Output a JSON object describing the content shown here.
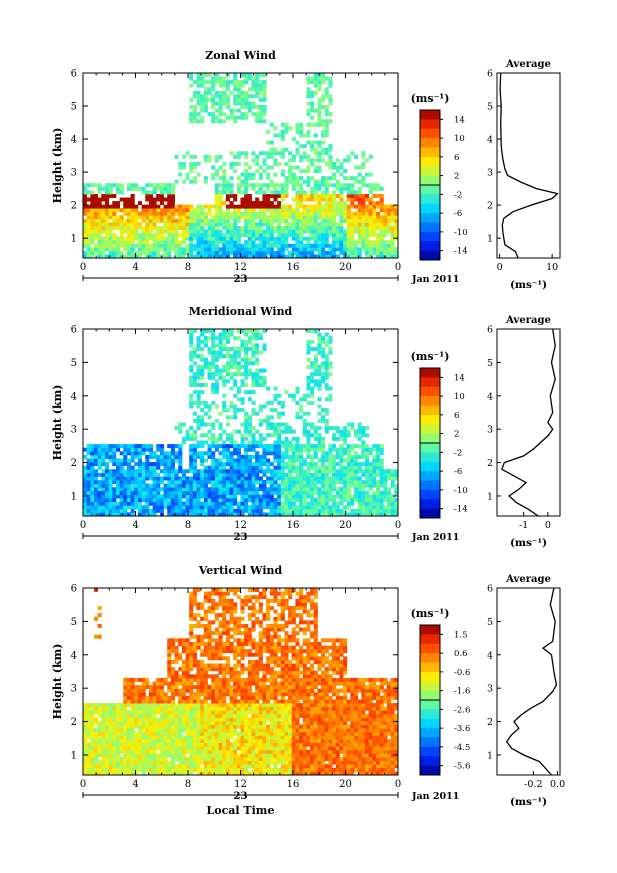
{
  "chart_data": [
    {
      "type": "heatmap",
      "title": "Zonal Wind",
      "ylabel": "Height (km)",
      "xlabel": "",
      "xlim": [
        0,
        24
      ],
      "ylim": [
        0.4,
        6
      ],
      "xticks": [
        "0",
        "4",
        "8",
        "12",
        "16",
        "20",
        "0"
      ],
      "yticks": [
        "1",
        "2",
        "3",
        "4",
        "5",
        "6"
      ],
      "date_label": "23",
      "date_suffix": "Jan 2011",
      "colorbar": {
        "label": "(ms⁻¹)",
        "ticks": [
          "14",
          "10",
          "6",
          "2",
          "-2",
          "-6",
          "-10",
          "-14"
        ],
        "vmin": -16,
        "vmax": 16
      },
      "average": {
        "title": "Average",
        "xlabel": "(ms⁻¹)",
        "xticks": [
          "0",
          "10"
        ],
        "xlim": [
          -0.5,
          11.5
        ],
        "profile": [
          [
            0.4,
            3.5
          ],
          [
            0.6,
            3
          ],
          [
            0.8,
            1
          ],
          [
            1.0,
            0.8
          ],
          [
            1.2,
            0.6
          ],
          [
            1.4,
            0.5
          ],
          [
            1.6,
            0.8
          ],
          [
            1.8,
            2.5
          ],
          [
            2.0,
            6
          ],
          [
            2.2,
            10
          ],
          [
            2.35,
            11
          ],
          [
            2.5,
            7
          ],
          [
            2.7,
            4
          ],
          [
            2.9,
            1.5
          ],
          [
            3.1,
            1
          ],
          [
            3.4,
            0.6
          ],
          [
            3.8,
            0.3
          ],
          [
            4.5,
            0.2
          ],
          [
            5.0,
            0.3
          ],
          [
            5.5,
            0.1
          ],
          [
            6.0,
            0.2
          ]
        ]
      }
    },
    {
      "type": "heatmap",
      "title": "Meridional Wind",
      "ylabel": "Height (km)",
      "xlabel": "",
      "xlim": [
        0,
        24
      ],
      "ylim": [
        0.4,
        6
      ],
      "xticks": [
        "0",
        "4",
        "8",
        "12",
        "16",
        "20",
        "0"
      ],
      "yticks": [
        "1",
        "2",
        "3",
        "4",
        "5",
        "6"
      ],
      "date_label": "23",
      "date_suffix": "Jan 2011",
      "colorbar": {
        "label": "(ms⁻¹)",
        "ticks": [
          "14",
          "10",
          "6",
          "2",
          "-2",
          "-6",
          "-10",
          "-14"
        ],
        "vmin": -16,
        "vmax": 16
      },
      "average": {
        "title": "Average",
        "xlabel": "(ms⁻¹)",
        "xticks": [
          "-1",
          "0"
        ],
        "xlim": [
          -2.1,
          0.5
        ],
        "profile": [
          [
            0.4,
            -0.4
          ],
          [
            0.6,
            -0.8
          ],
          [
            0.8,
            -1.3
          ],
          [
            1.0,
            -1.6
          ],
          [
            1.2,
            -1.2
          ],
          [
            1.4,
            -0.9
          ],
          [
            1.6,
            -1.4
          ],
          [
            1.8,
            -1.9
          ],
          [
            2.0,
            -1.8
          ],
          [
            2.2,
            -1.0
          ],
          [
            2.4,
            -0.6
          ],
          [
            2.6,
            -0.3
          ],
          [
            2.8,
            0.0
          ],
          [
            3.0,
            0.2
          ],
          [
            3.2,
            0.0
          ],
          [
            3.5,
            0.2
          ],
          [
            4.0,
            0.1
          ],
          [
            4.5,
            0.3
          ],
          [
            5.0,
            0.15
          ],
          [
            5.5,
            0.3
          ],
          [
            6.0,
            0.2
          ]
        ]
      }
    },
    {
      "type": "heatmap",
      "title": "Vertical Wind",
      "ylabel": "Height (km)",
      "xlabel": "Local Time",
      "xlim": [
        0,
        24
      ],
      "ylim": [
        0.4,
        6
      ],
      "xticks": [
        "0",
        "4",
        "8",
        "12",
        "16",
        "20",
        "0"
      ],
      "yticks": [
        "1",
        "2",
        "3",
        "4",
        "5",
        "6"
      ],
      "date_label": "23",
      "date_suffix": "Jan 2011",
      "colorbar": {
        "label": "(ms⁻¹)",
        "ticks": [
          "1.5",
          "0.6",
          "-0.6",
          "-1.6",
          "-2.6",
          "-3.6",
          "-4.5",
          "-5.6"
        ],
        "vmin": -6,
        "vmax": 2
      },
      "average": {
        "title": "Average",
        "xlabel": "(ms⁻¹)",
        "xticks": [
          "-0.2",
          "0.0"
        ],
        "xlim": [
          -0.5,
          0.02
        ],
        "profile": [
          [
            0.4,
            -0.05
          ],
          [
            0.6,
            -0.1
          ],
          [
            0.8,
            -0.15
          ],
          [
            1.0,
            -0.28
          ],
          [
            1.2,
            -0.38
          ],
          [
            1.4,
            -0.42
          ],
          [
            1.6,
            -0.38
          ],
          [
            1.8,
            -0.32
          ],
          [
            2.0,
            -0.36
          ],
          [
            2.2,
            -0.3
          ],
          [
            2.4,
            -0.22
          ],
          [
            2.6,
            -0.12
          ],
          [
            2.9,
            -0.04
          ],
          [
            3.1,
            -0.01
          ],
          [
            3.5,
            -0.03
          ],
          [
            4.0,
            -0.05
          ],
          [
            4.2,
            -0.12
          ],
          [
            4.4,
            -0.04
          ],
          [
            5.0,
            -0.02
          ],
          [
            5.5,
            -0.06
          ],
          [
            6.0,
            -0.03
          ]
        ]
      }
    }
  ]
}
